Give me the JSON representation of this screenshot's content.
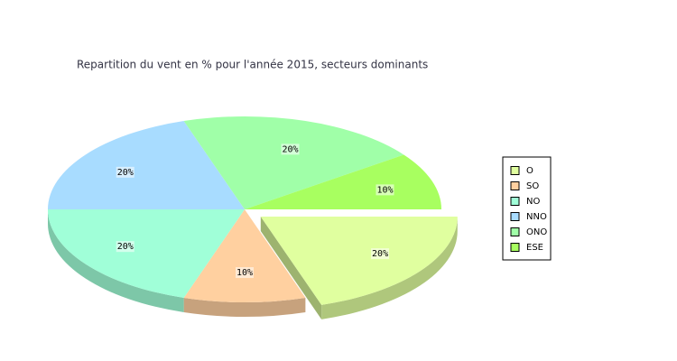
{
  "chart_data": {
    "type": "pie3d",
    "title": "Repartition du vent en % pour l'année 2015, secteurs dominants",
    "categories": [
      "O",
      "SO",
      "NO",
      "NNO",
      "ONO",
      "ESE"
    ],
    "values": [
      20,
      10,
      20,
      20,
      20,
      10
    ],
    "value_labels": [
      "20%",
      "10%",
      "20%",
      "20%",
      "20%",
      "10%"
    ],
    "colors": [
      "#e0ff9f",
      "#ffd0a0",
      "#a0ffd8",
      "#a8dcff",
      "#a0ffa8",
      "#a8ff60"
    ],
    "exploded": [
      true,
      false,
      false,
      false,
      false,
      false
    ],
    "legend": "right"
  }
}
